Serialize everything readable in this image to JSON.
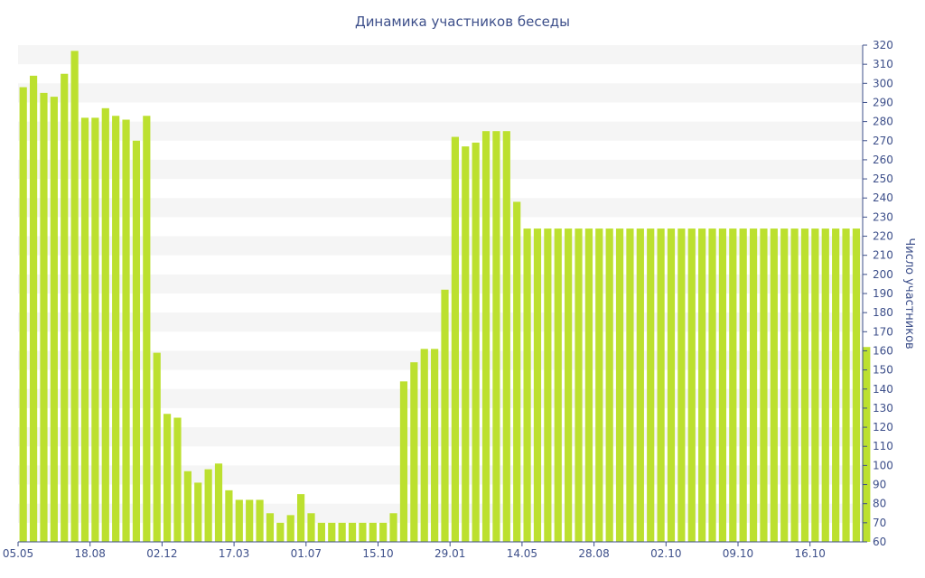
{
  "chart_data": {
    "type": "bar",
    "title": "Динамика участников беседы",
    "xlabel": "",
    "ylabel": "Число участников",
    "ylim": [
      60,
      320
    ],
    "y_axis_position": "right",
    "grid": "alternating horizontal bands",
    "legend": "none",
    "colors": {
      "bar": "#bce02f",
      "text": "#3d4f8a",
      "band": "#f5f5f5"
    },
    "x_tick_labels": [
      "05.05",
      "18.08",
      "02.12",
      "17.03",
      "01.07",
      "15.10",
      "29.01",
      "14.05",
      "28.08",
      "02.10",
      "09.10",
      "16.10"
    ],
    "x_tick_indices": [
      0,
      7,
      14,
      21,
      28,
      35,
      42,
      49,
      56,
      63,
      70,
      77
    ],
    "y_ticks": [
      60,
      70,
      80,
      90,
      100,
      110,
      120,
      130,
      140,
      150,
      160,
      170,
      180,
      190,
      200,
      210,
      220,
      230,
      240,
      250,
      260,
      270,
      280,
      290,
      300,
      310,
      320
    ],
    "values": [
      298,
      304,
      295,
      293,
      305,
      317,
      282,
      282,
      287,
      283,
      281,
      270,
      283,
      159,
      127,
      125,
      97,
      91,
      98,
      101,
      87,
      82,
      82,
      82,
      75,
      70,
      74,
      85,
      75,
      70,
      70,
      70,
      70,
      70,
      70,
      70,
      75,
      144,
      154,
      161,
      161,
      192,
      272,
      267,
      269,
      275,
      275,
      275,
      238,
      224,
      224,
      224,
      224,
      224,
      224,
      224,
      224,
      224,
      224,
      224,
      224,
      224,
      224,
      224,
      224,
      224,
      224,
      224,
      224,
      224,
      224,
      224,
      224,
      224,
      224,
      224,
      224,
      224,
      224,
      224,
      224,
      224,
      162
    ]
  }
}
